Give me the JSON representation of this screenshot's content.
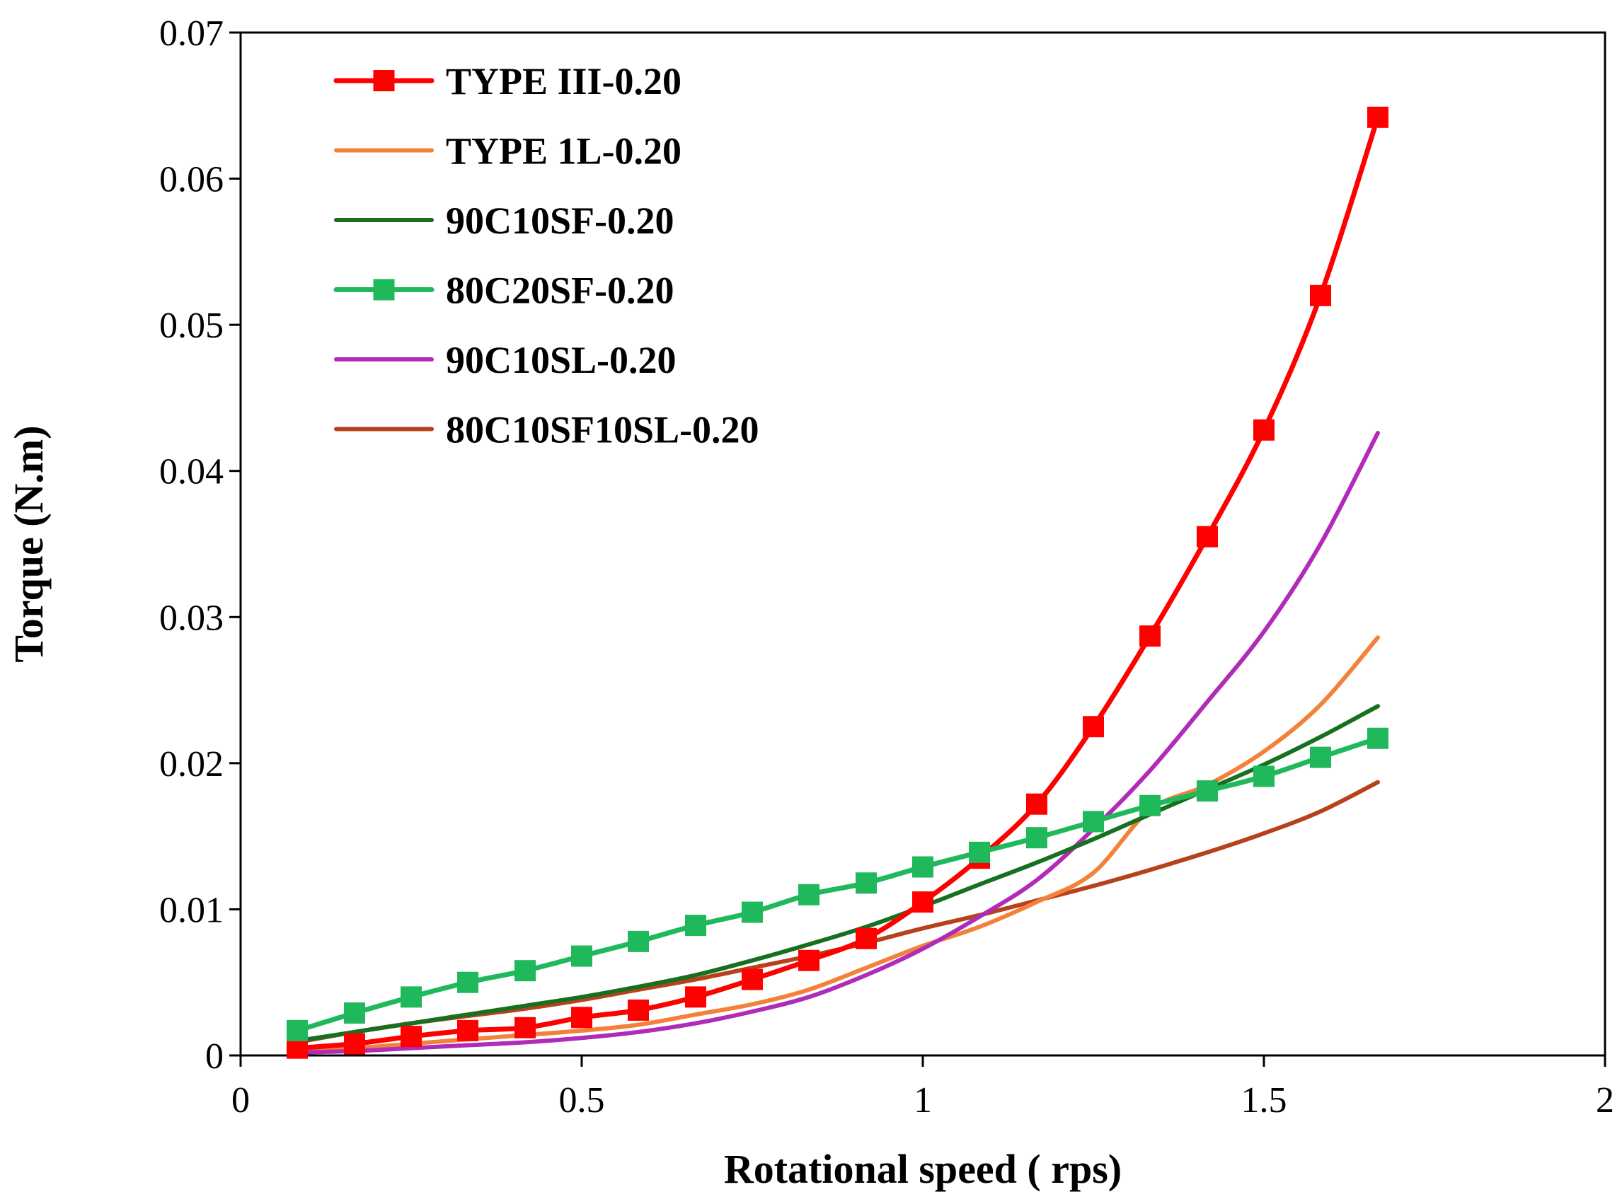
{
  "chart_data": {
    "type": "line",
    "title": "",
    "xlabel": "Rotational speed ( rps)",
    "ylabel": "Torque (N.m)",
    "xlim": [
      0,
      2
    ],
    "ylim": [
      0,
      0.07
    ],
    "x_ticks": [
      0,
      0.5,
      1,
      1.5,
      2
    ],
    "x_tick_labels": [
      "0",
      "0.5",
      "1",
      "1.5",
      "2"
    ],
    "y_ticks": [
      0,
      0.01,
      0.02,
      0.03,
      0.04,
      0.05,
      0.06,
      0.07
    ],
    "y_tick_labels": [
      "0",
      "0.01",
      "0.02",
      "0.03",
      "0.04",
      "0.05",
      "0.06",
      "0.07"
    ],
    "grid": false,
    "legend_position": "top-left",
    "series": [
      {
        "name": "TYPE III-0.20",
        "color": "#ff0000",
        "marker": "square",
        "x": [
          0.083,
          0.167,
          0.25,
          0.333,
          0.417,
          0.5,
          0.583,
          0.667,
          0.75,
          0.833,
          0.917,
          1.0,
          1.083,
          1.167,
          1.25,
          1.333,
          1.417,
          1.5,
          1.583,
          1.667
        ],
        "values": [
          0.0005,
          0.0008,
          0.0013,
          0.0017,
          0.0019,
          0.0026,
          0.0031,
          0.004,
          0.0052,
          0.0065,
          0.008,
          0.0105,
          0.0135,
          0.0172,
          0.0225,
          0.0287,
          0.0355,
          0.0428,
          0.052,
          0.0642
        ]
      },
      {
        "name": "TYPE 1L-0.20",
        "color": "#f4813a",
        "marker": "none",
        "x": [
          0.083,
          0.167,
          0.25,
          0.333,
          0.417,
          0.5,
          0.583,
          0.667,
          0.75,
          0.833,
          0.917,
          1.0,
          1.083,
          1.167,
          1.25,
          1.333,
          1.417,
          1.5,
          1.583,
          1.667
        ],
        "values": [
          0.0003,
          0.0005,
          0.0008,
          0.0011,
          0.0014,
          0.0017,
          0.0021,
          0.0028,
          0.0035,
          0.0045,
          0.006,
          0.0075,
          0.0088,
          0.0105,
          0.0125,
          0.0168,
          0.0185,
          0.0208,
          0.024,
          0.0286
        ]
      },
      {
        "name": "90C10SF-0.20",
        "color": "#17701f",
        "marker": "none",
        "x": [
          0.083,
          0.167,
          0.25,
          0.333,
          0.417,
          0.5,
          0.583,
          0.667,
          0.75,
          0.833,
          0.917,
          1.0,
          1.083,
          1.167,
          1.25,
          1.333,
          1.417,
          1.5,
          1.583,
          1.667
        ],
        "values": [
          0.001,
          0.0016,
          0.0022,
          0.0028,
          0.0034,
          0.004,
          0.0047,
          0.0055,
          0.0065,
          0.0076,
          0.0088,
          0.0102,
          0.0117,
          0.0132,
          0.0148,
          0.0165,
          0.0182,
          0.0199,
          0.0218,
          0.0239
        ]
      },
      {
        "name": "80C20SF-0.20",
        "color": "#1fb85a",
        "marker": "square",
        "x": [
          0.083,
          0.167,
          0.25,
          0.333,
          0.417,
          0.5,
          0.583,
          0.667,
          0.75,
          0.833,
          0.917,
          1.0,
          1.083,
          1.167,
          1.25,
          1.333,
          1.417,
          1.5,
          1.583,
          1.667
        ],
        "values": [
          0.0017,
          0.0029,
          0.004,
          0.005,
          0.0058,
          0.0068,
          0.0078,
          0.0089,
          0.0098,
          0.011,
          0.0118,
          0.0129,
          0.0139,
          0.0149,
          0.016,
          0.0171,
          0.0181,
          0.0191,
          0.0204,
          0.0217
        ]
      },
      {
        "name": "90C10SL-0.20",
        "color": "#b02bb8",
        "marker": "none",
        "x": [
          0.083,
          0.167,
          0.25,
          0.333,
          0.417,
          0.5,
          0.583,
          0.667,
          0.75,
          0.833,
          0.917,
          1.0,
          1.083,
          1.167,
          1.25,
          1.333,
          1.417,
          1.5,
          1.583,
          1.667
        ],
        "values": [
          0.0002,
          0.0003,
          0.0005,
          0.0007,
          0.0009,
          0.0012,
          0.0016,
          0.0022,
          0.003,
          0.004,
          0.0055,
          0.0073,
          0.0095,
          0.012,
          0.0155,
          0.0195,
          0.0242,
          0.029,
          0.035,
          0.0426
        ]
      },
      {
        "name": "80C10SF10SL-0.20",
        "color": "#b5421a",
        "marker": "none",
        "x": [
          0.083,
          0.167,
          0.25,
          0.333,
          0.417,
          0.5,
          0.583,
          0.667,
          0.75,
          0.833,
          0.917,
          1.0,
          1.083,
          1.167,
          1.25,
          1.333,
          1.417,
          1.5,
          1.583,
          1.667
        ],
        "values": [
          0.0009,
          0.0016,
          0.0022,
          0.0027,
          0.0032,
          0.0038,
          0.0045,
          0.0052,
          0.006,
          0.0068,
          0.0077,
          0.0087,
          0.0096,
          0.0106,
          0.0116,
          0.0127,
          0.0139,
          0.0152,
          0.0167,
          0.0187
        ]
      }
    ]
  }
}
